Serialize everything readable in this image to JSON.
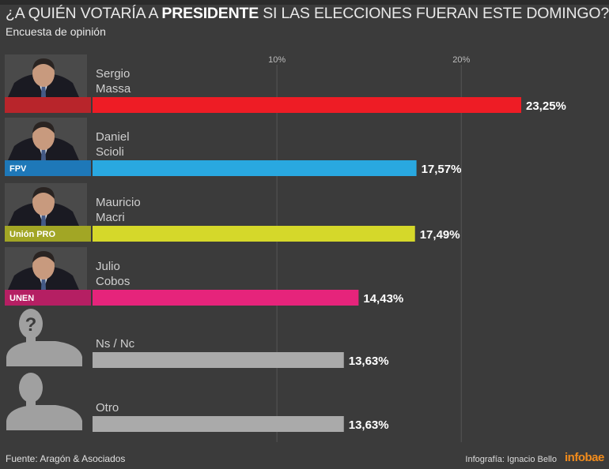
{
  "title": {
    "prefix": "¿A QUIÉN VOTARÍA A ",
    "bold": "PRESIDENTE",
    "suffix": " SI LAS ELECCIONES FUERAN ESTE DOMINGO?"
  },
  "subtitle": "Encuesta de opinión",
  "footer": {
    "source": "Fuente: Aragón & Asociados",
    "credit": "Infografía:  Ignacio Bello",
    "brand": "infobae"
  },
  "chart_data": {
    "type": "bar",
    "orientation": "horizontal",
    "ticks": [
      {
        "value": 10,
        "label": "10%"
      },
      {
        "value": 20,
        "label": "20%"
      }
    ],
    "xlim": [
      0,
      23.25
    ],
    "grid": true,
    "categories": [
      {
        "name": [
          "Sergio",
          "Massa"
        ],
        "value": 23.25,
        "value_label": "23,25%",
        "party": "",
        "bar_color": "#ee1c25",
        "tag_color": "#b8252b",
        "icon": "candidate-photo"
      },
      {
        "name": [
          "Daniel",
          "Scioli"
        ],
        "value": 17.57,
        "value_label": "17,57%",
        "party": "FPV",
        "bar_color": "#29a8e0",
        "tag_color": "#1e78b8",
        "icon": "candidate-photo"
      },
      {
        "name": [
          "Mauricio",
          "Macri"
        ],
        "value": 17.49,
        "value_label": "17,49%",
        "party": "Unión PRO",
        "bar_color": "#d5d82a",
        "tag_color": "#a2a625",
        "icon": "candidate-photo"
      },
      {
        "name": [
          "Julio",
          "Cobos"
        ],
        "value": 14.43,
        "value_label": "14,43%",
        "party": "UNEN",
        "bar_color": "#e6247b",
        "tag_color": "#b51f63",
        "icon": "candidate-photo"
      },
      {
        "name": [
          "Ns / Nc"
        ],
        "value": 13.63,
        "value_label": "13,63%",
        "party": "",
        "bar_color": "#aaaaaa",
        "tag_color": "",
        "icon": "question-silhouette-icon"
      },
      {
        "name": [
          "Otro"
        ],
        "value": 13.63,
        "value_label": "13,63%",
        "party": "",
        "bar_color": "#aaaaaa",
        "tag_color": "",
        "icon": "person-silhouette-icon"
      }
    ]
  }
}
